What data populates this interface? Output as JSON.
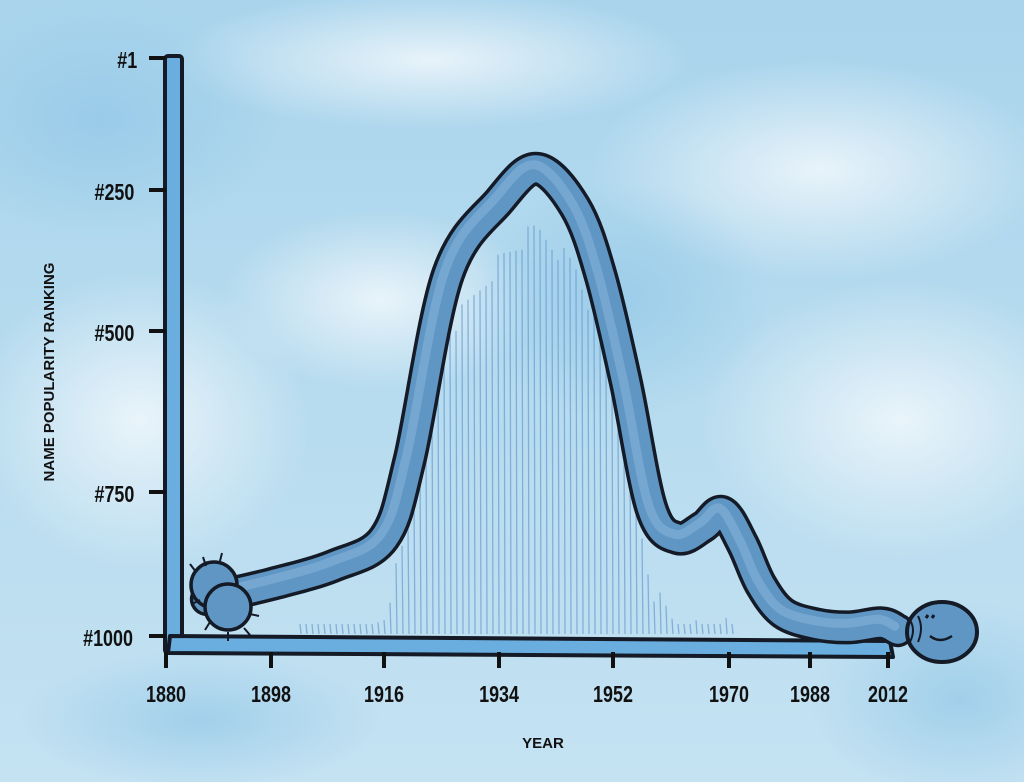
{
  "chart_data": {
    "type": "line",
    "title": "",
    "xlabel": "YEAR",
    "ylabel": "NAME POPULARITY RANKING",
    "x_ticks": [
      1880,
      1898,
      1916,
      1934,
      1952,
      1970,
      1988,
      2012
    ],
    "x_tick_labels": [
      "1880",
      "1898",
      "1916",
      "1934",
      "1952",
      "1970",
      "1988",
      "2012"
    ],
    "y_ticks": [
      1,
      250,
      500,
      750,
      1000
    ],
    "y_tick_labels": [
      "#1",
      "#250",
      "#500",
      "#750",
      "#1000"
    ],
    "ylim": [
      1000,
      1
    ],
    "y_inverted": true,
    "grid": false,
    "legend": "none",
    "series": [
      {
        "style": "cartoon-worm",
        "x": [
          1887,
          1898,
          1908,
          1916,
          1920,
          1926,
          1934,
          1940,
          1946,
          1950,
          1954,
          1958,
          1962,
          1966,
          1969,
          1973,
          1977,
          1982,
          1990,
          2000,
          2010,
          2015
        ],
        "values": [
          936,
          910,
          878,
          830,
          700,
          400,
          270,
          210,
          280,
          400,
          580,
          780,
          830,
          810,
          785,
          840,
          910,
          960,
          980,
          985,
          978,
          990
        ]
      }
    ]
  },
  "colors": {
    "worm_fill": "#5f96c4",
    "worm_outline": "#141a26",
    "axis_fill": "#6aaee0",
    "hatching": "#6e9fd3",
    "ink": "#111111"
  }
}
